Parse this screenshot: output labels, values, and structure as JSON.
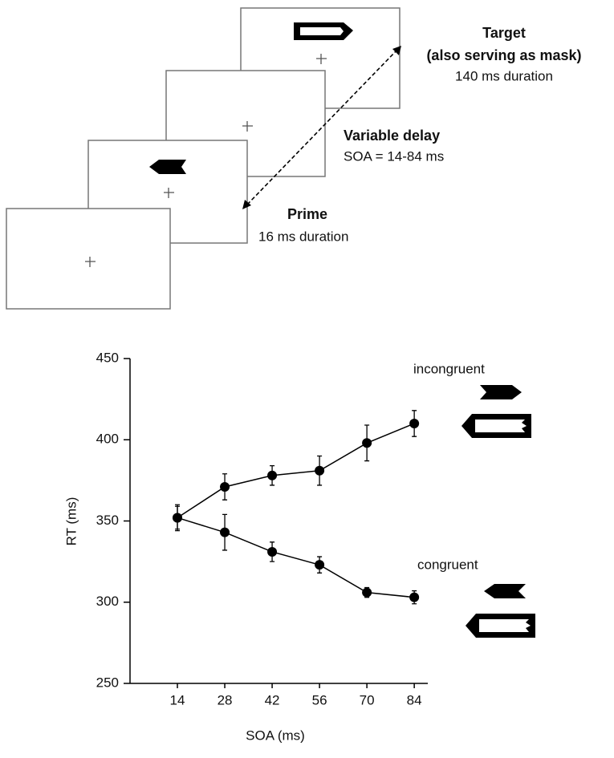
{
  "diagram": {
    "target": {
      "title": "Target",
      "subtitle": "(also serving as mask)",
      "duration": "140 ms duration"
    },
    "delay": {
      "title": "Variable delay",
      "soa": "SOA = 14-84 ms"
    },
    "prime": {
      "title": "Prime",
      "duration": "16 ms duration"
    }
  },
  "chart_data": {
    "type": "line",
    "ylabel": "RT (ms)",
    "xlabel": "SOA (ms)",
    "x": [
      14,
      28,
      42,
      56,
      70,
      84
    ],
    "xlim": [
      0,
      88
    ],
    "xticks": [
      14,
      28,
      42,
      56,
      70,
      84
    ],
    "ylim": [
      250,
      450
    ],
    "yticks": [
      250,
      300,
      350,
      400,
      450
    ],
    "series": [
      {
        "name": "incongruent",
        "color": "#000000",
        "values": [
          352,
          371,
          378,
          381,
          398,
          410
        ],
        "errors": [
          8,
          8,
          6,
          9,
          11,
          8
        ]
      },
      {
        "name": "congruent",
        "color": "#000000",
        "values": [
          352,
          343,
          331,
          323,
          306,
          303
        ],
        "errors": [
          7,
          11,
          6,
          5,
          3,
          4
        ]
      }
    ]
  }
}
